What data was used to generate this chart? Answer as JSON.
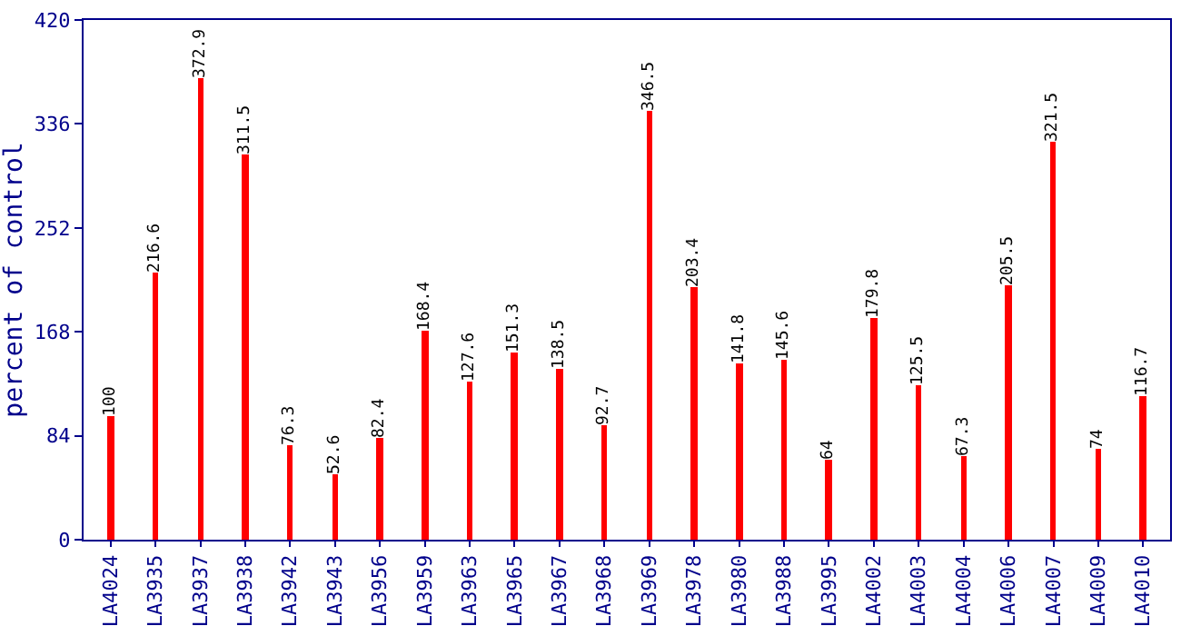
{
  "chart_data": {
    "type": "bar",
    "ylabel": "percent of control",
    "categories": [
      "LA4024",
      "LA3935",
      "LA3937",
      "LA3938",
      "LA3942",
      "LA3943",
      "LA3956",
      "LA3959",
      "LA3963",
      "LA3965",
      "LA3967",
      "LA3968",
      "LA3969",
      "LA3978",
      "LA3980",
      "LA3988",
      "LA3995",
      "LA4002",
      "LA4003",
      "LA4004",
      "LA4006",
      "LA4007",
      "LA4009",
      "LA4010"
    ],
    "values": [
      100,
      216.6,
      372.9,
      311.5,
      76.3,
      52.6,
      82.4,
      168.4,
      127.6,
      151.3,
      138.5,
      92.7,
      346.5,
      203.4,
      141.8,
      145.6,
      64,
      179.8,
      125.5,
      67.3,
      205.5,
      321.5,
      74,
      116.7
    ],
    "color": "#ff0000",
    "ylim": [
      0,
      420
    ],
    "yticks": [
      0,
      84,
      168,
      252,
      336,
      420
    ],
    "legend": false,
    "data_labels": true
  }
}
